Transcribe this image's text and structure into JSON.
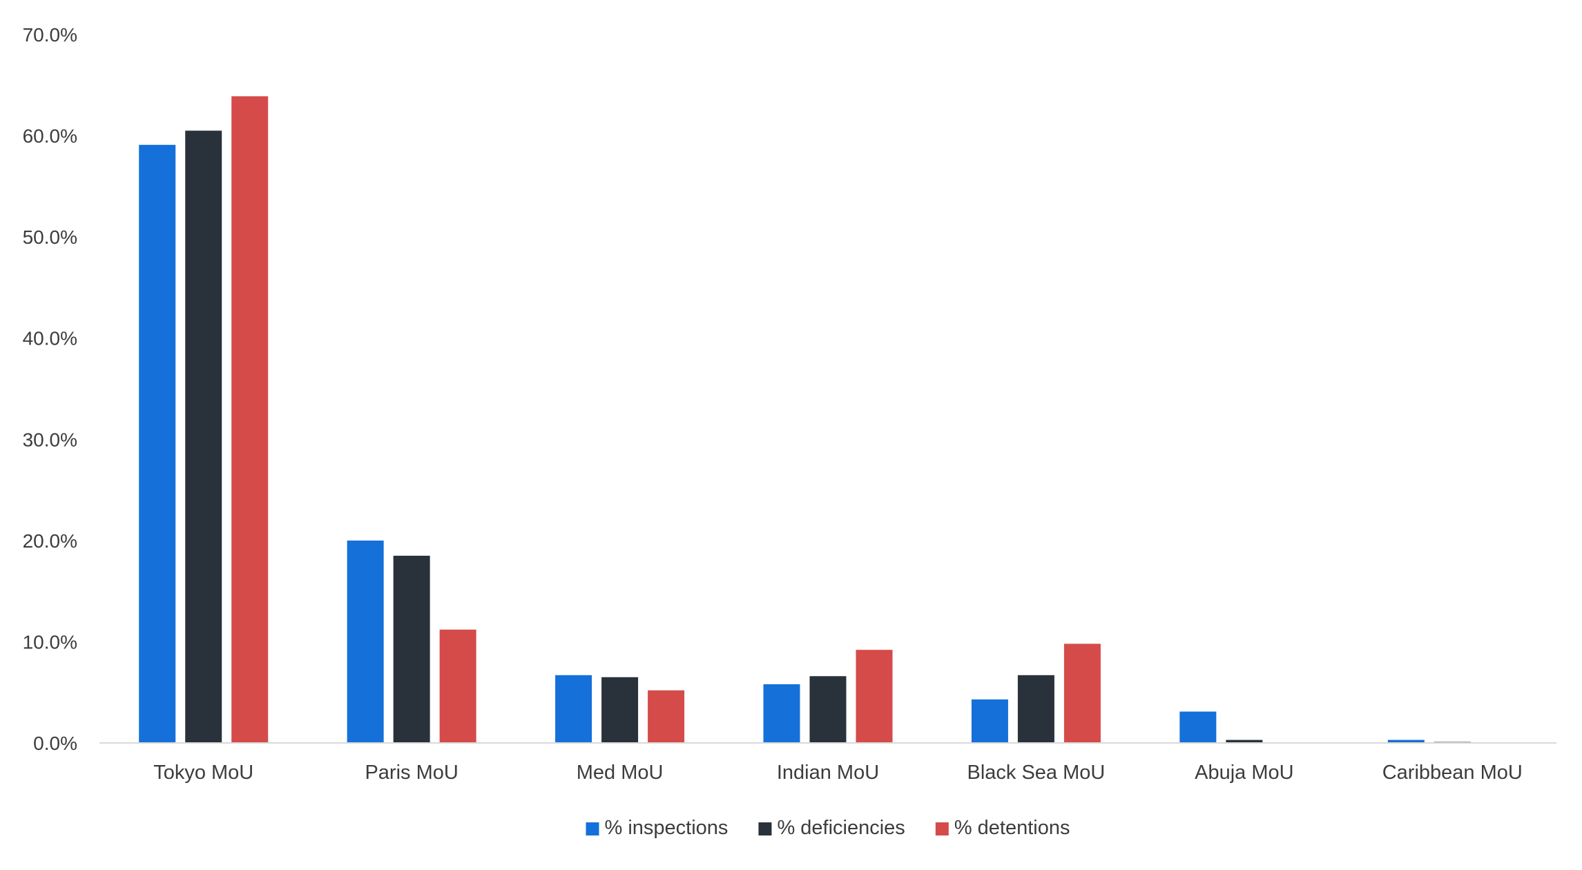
{
  "chart_data": {
    "type": "bar",
    "title": "",
    "xlabel": "",
    "ylabel": "",
    "categories": [
      "Tokyo MoU",
      "Paris MoU",
      "Med MoU",
      "Indian MoU",
      "Black Sea MoU",
      "Abuja MoU",
      "Caribbean MoU"
    ],
    "series": [
      {
        "name": "% inspections",
        "color": "#1570d9",
        "values": [
          59.1,
          20.0,
          6.7,
          5.8,
          4.3,
          3.1,
          0.3
        ]
      },
      {
        "name": "% deficiencies",
        "color": "#29323b",
        "values": [
          60.5,
          18.5,
          6.5,
          6.6,
          6.7,
          0.3,
          0.1
        ]
      },
      {
        "name": "% detentions",
        "color": "#d54b49",
        "values": [
          63.9,
          11.2,
          5.2,
          9.2,
          9.8,
          0.0,
          0.0
        ]
      }
    ],
    "ylim": [
      0,
      70
    ],
    "yticks": [
      "0.0%",
      "10.0%",
      "20.0%",
      "30.0%",
      "40.0%",
      "50.0%",
      "60.0%",
      "70.0%"
    ],
    "grid": false,
    "legend_position": "bottom"
  }
}
